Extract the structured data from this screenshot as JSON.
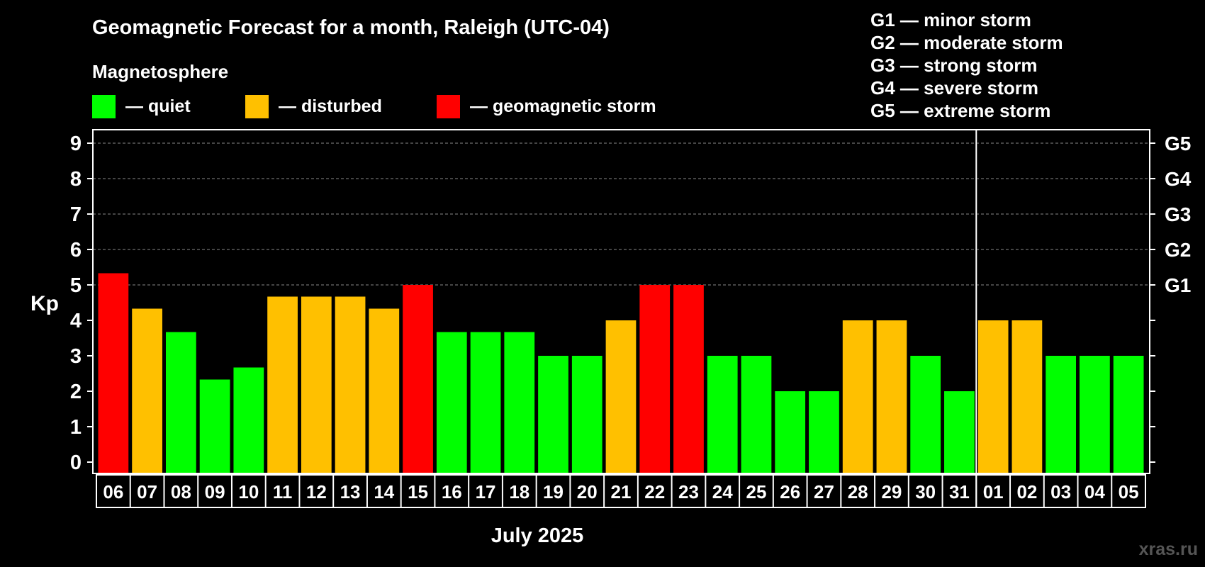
{
  "chart_data": {
    "type": "bar",
    "title": "Geomagnetic Forecast for a month, Raleigh (UTC-04)",
    "legend_title": "Magnetosphere",
    "legend": [
      {
        "key": "quiet",
        "label": "— quiet",
        "color": "#00ff00"
      },
      {
        "key": "disturbed",
        "label": "— disturbed",
        "color": "#ffc000"
      },
      {
        "key": "storm",
        "label": "— geomagnetic storm",
        "color": "#ff0000"
      }
    ],
    "storm_scale": [
      "G1 — minor storm",
      "G2 — moderate storm",
      "G3 — strong storm",
      "G4 — severe storm",
      "G5 — extreme storm"
    ],
    "ylabel": "Kp",
    "xlabel": "July 2025",
    "ylim": [
      0,
      9
    ],
    "yticks": [
      "0",
      "1",
      "2",
      "3",
      "4",
      "5",
      "6",
      "7",
      "8",
      "9"
    ],
    "right_ticks": [
      {
        "kp": 5,
        "label": "G1"
      },
      {
        "kp": 6,
        "label": "G2"
      },
      {
        "kp": 7,
        "label": "G3"
      },
      {
        "kp": 8,
        "label": "G4"
      },
      {
        "kp": 9,
        "label": "G5"
      }
    ],
    "grid_levels": [
      5,
      6,
      7,
      8,
      9
    ],
    "month_divider_after": "31",
    "categories": [
      "06",
      "07",
      "08",
      "09",
      "10",
      "11",
      "12",
      "13",
      "14",
      "15",
      "16",
      "17",
      "18",
      "19",
      "20",
      "21",
      "22",
      "23",
      "24",
      "25",
      "26",
      "27",
      "28",
      "29",
      "30",
      "31",
      "01",
      "02",
      "03",
      "04",
      "05"
    ],
    "values": [
      5.33,
      4.33,
      3.67,
      2.33,
      2.67,
      4.67,
      4.67,
      4.67,
      4.33,
      5,
      3.67,
      3.67,
      3.67,
      3,
      3,
      4,
      5,
      5,
      3,
      3,
      2,
      2,
      4,
      4,
      3,
      2,
      4,
      4,
      3,
      3,
      3
    ],
    "levels": [
      "storm",
      "disturbed",
      "quiet",
      "quiet",
      "quiet",
      "disturbed",
      "disturbed",
      "disturbed",
      "disturbed",
      "storm",
      "quiet",
      "quiet",
      "quiet",
      "quiet",
      "quiet",
      "disturbed",
      "storm",
      "storm",
      "quiet",
      "quiet",
      "quiet",
      "quiet",
      "disturbed",
      "disturbed",
      "quiet",
      "quiet",
      "disturbed",
      "disturbed",
      "quiet",
      "quiet",
      "quiet"
    ]
  },
  "watermark": "xras.ru"
}
